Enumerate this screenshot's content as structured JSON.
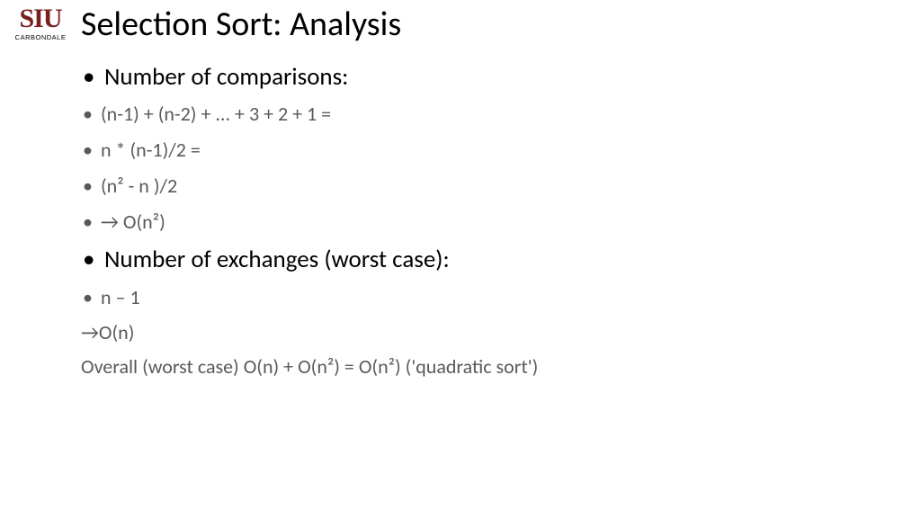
{
  "logo": {
    "main": "SIU",
    "sub": "CARBONDALE",
    "main_color": "#7a1e1e"
  },
  "title": "Selection Sort: Analysis",
  "bullets": [
    {
      "level": 1,
      "text": "Number of comparisons:"
    },
    {
      "level": 2,
      "text": "(n-1) + (n-2) + ... + 3 + 2 + 1 ="
    },
    {
      "level": 2,
      "text": "n * (n-1)/2 ="
    },
    {
      "level": 2,
      "text": "(n² - n )/2"
    },
    {
      "level": 2,
      "text": "→ O(n²)"
    },
    {
      "level": 1,
      "text": "Number of exchanges (worst case):"
    },
    {
      "level": 2,
      "text": "n – 1"
    }
  ],
  "plain_lines": [
    "→O(n)",
    "Overall (worst case)  O(n) + O(n²) = O(n²)   ('quadratic sort')"
  ],
  "colors": {
    "text_primary": "#000000",
    "text_secondary": "#595959",
    "background": "#ffffff"
  },
  "fonts": {
    "title_size_pt": 38,
    "lvl1_size_pt": 27,
    "lvl2_size_pt": 22
  }
}
